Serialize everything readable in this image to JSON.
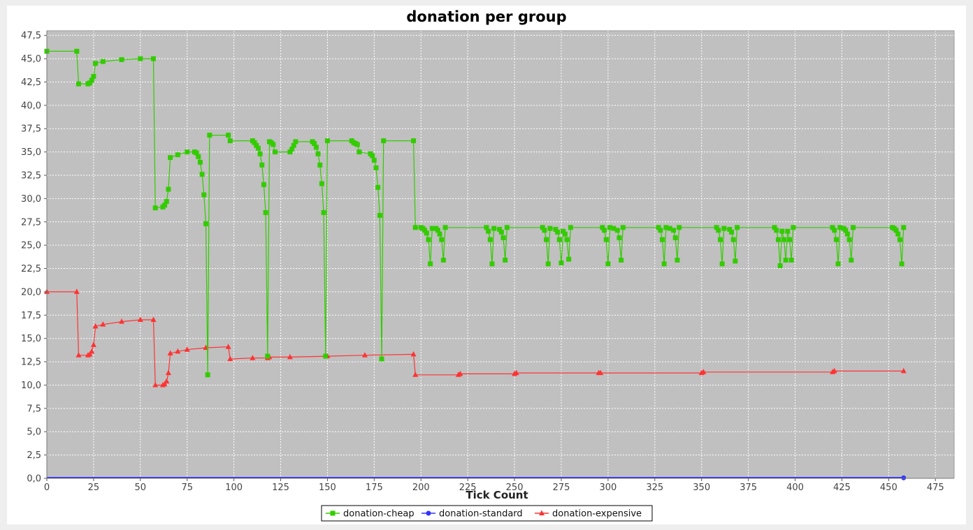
{
  "chart_data": {
    "type": "line",
    "title": "donation per group",
    "xlabel": "Tick Count",
    "ylabel": "",
    "xlim": [
      0,
      485
    ],
    "ylim": [
      0,
      48
    ],
    "xticks": [
      0,
      25,
      50,
      75,
      100,
      125,
      150,
      175,
      200,
      225,
      250,
      275,
      300,
      325,
      350,
      375,
      400,
      425,
      450,
      475
    ],
    "xtick_labels": [
      "0",
      "25",
      "50",
      "75",
      "100",
      "125",
      "150",
      "175",
      "200",
      "225",
      "250",
      "275",
      "300",
      "325",
      "350",
      "375",
      "400",
      "425",
      "450",
      "475"
    ],
    "yticks": [
      0,
      2.5,
      5,
      7.5,
      10,
      12.5,
      15,
      17.5,
      20,
      22.5,
      25,
      27.5,
      30,
      32.5,
      35,
      37.5,
      40,
      42.5,
      45,
      47.5
    ],
    "ytick_labels": [
      "0,0",
      "2,5",
      "5,0",
      "7,5",
      "10,0",
      "12,5",
      "15,0",
      "17,5",
      "20,0",
      "22,5",
      "25,0",
      "27,5",
      "30,0",
      "32,5",
      "35,0",
      "37,5",
      "40,0",
      "42,5",
      "45,0",
      "47,5"
    ],
    "grid": true,
    "legend_position": "bottom",
    "plot_background": "#c0c0c0",
    "series": [
      {
        "name": "donation-cheap",
        "color": "#33cc00",
        "marker": "square",
        "points": [
          [
            0,
            45.8
          ],
          [
            16,
            45.8
          ],
          [
            17,
            42.3
          ],
          [
            22,
            42.3
          ],
          [
            23,
            42.4
          ],
          [
            24,
            42.7
          ],
          [
            25,
            43.1
          ],
          [
            26,
            44.5
          ],
          [
            30,
            44.7
          ],
          [
            40,
            44.9
          ],
          [
            50,
            45.0
          ],
          [
            57,
            45.0
          ],
          [
            58,
            29.0
          ],
          [
            62,
            29.1
          ],
          [
            63,
            29.3
          ],
          [
            64,
            29.7
          ],
          [
            65,
            31.0
          ],
          [
            66,
            34.4
          ],
          [
            70,
            34.7
          ],
          [
            75,
            35.0
          ],
          [
            79,
            35.0
          ],
          [
            80,
            34.9
          ],
          [
            81,
            34.5
          ],
          [
            82,
            33.9
          ],
          [
            83,
            32.6
          ],
          [
            84,
            30.4
          ],
          [
            85,
            27.3
          ],
          [
            86,
            11.1
          ],
          [
            87,
            36.8
          ],
          [
            97,
            36.8
          ],
          [
            98,
            36.2
          ],
          [
            110,
            36.2
          ],
          [
            111,
            36.0
          ],
          [
            112,
            35.7
          ],
          [
            113,
            35.4
          ],
          [
            114,
            34.8
          ],
          [
            115,
            33.6
          ],
          [
            116,
            31.5
          ],
          [
            117,
            28.5
          ],
          [
            118,
            13.1
          ],
          [
            119,
            36.1
          ],
          [
            120,
            36.0
          ],
          [
            121,
            35.8
          ],
          [
            122,
            35.0
          ],
          [
            130,
            35.0
          ],
          [
            131,
            35.3
          ],
          [
            132,
            35.7
          ],
          [
            133,
            36.1
          ],
          [
            142,
            36.1
          ],
          [
            143,
            35.9
          ],
          [
            144,
            35.5
          ],
          [
            145,
            34.8
          ],
          [
            146,
            33.6
          ],
          [
            147,
            31.6
          ],
          [
            148,
            28.5
          ],
          [
            149,
            13.1
          ],
          [
            150,
            36.2
          ],
          [
            163,
            36.2
          ],
          [
            164,
            36.0
          ],
          [
            165,
            35.9
          ],
          [
            166,
            35.8
          ],
          [
            167,
            35.0
          ],
          [
            173,
            34.8
          ],
          [
            174,
            34.6
          ],
          [
            175,
            34.1
          ],
          [
            176,
            33.3
          ],
          [
            177,
            31.2
          ],
          [
            178,
            28.2
          ],
          [
            179,
            12.8
          ],
          [
            180,
            36.2
          ],
          [
            196,
            36.2
          ],
          [
            197,
            26.9
          ],
          [
            200,
            26.9
          ],
          [
            201,
            26.8
          ],
          [
            202,
            26.6
          ],
          [
            203,
            26.3
          ],
          [
            204,
            25.6
          ],
          [
            205,
            23.0
          ],
          [
            206,
            26.8
          ],
          [
            208,
            26.8
          ],
          [
            209,
            26.6
          ],
          [
            210,
            26.2
          ],
          [
            211,
            25.6
          ],
          [
            212,
            23.4
          ],
          [
            213,
            26.9
          ],
          [
            235,
            26.9
          ],
          [
            236,
            26.5
          ],
          [
            237,
            25.6
          ],
          [
            238,
            23.0
          ],
          [
            239,
            26.8
          ],
          [
            242,
            26.7
          ],
          [
            243,
            26.4
          ],
          [
            244,
            25.8
          ],
          [
            245,
            23.4
          ],
          [
            246,
            26.9
          ],
          [
            265,
            26.9
          ],
          [
            266,
            26.6
          ],
          [
            267,
            25.6
          ],
          [
            268,
            23.0
          ],
          [
            269,
            26.8
          ],
          [
            272,
            26.7
          ],
          [
            273,
            26.4
          ],
          [
            274,
            25.6
          ],
          [
            275,
            23.1
          ],
          [
            276,
            26.5
          ],
          [
            277,
            26.2
          ],
          [
            278,
            25.6
          ],
          [
            279,
            23.5
          ],
          [
            280,
            26.9
          ],
          [
            297,
            26.9
          ],
          [
            298,
            26.6
          ],
          [
            299,
            25.6
          ],
          [
            300,
            23.0
          ],
          [
            301,
            26.9
          ],
          [
            303,
            26.8
          ],
          [
            305,
            26.6
          ],
          [
            306,
            25.8
          ],
          [
            307,
            23.4
          ],
          [
            308,
            26.9
          ],
          [
            327,
            26.9
          ],
          [
            328,
            26.6
          ],
          [
            329,
            25.6
          ],
          [
            330,
            23.0
          ],
          [
            331,
            26.9
          ],
          [
            333,
            26.8
          ],
          [
            335,
            26.6
          ],
          [
            336,
            25.8
          ],
          [
            337,
            23.4
          ],
          [
            338,
            26.9
          ],
          [
            358,
            26.9
          ],
          [
            359,
            26.6
          ],
          [
            360,
            25.6
          ],
          [
            361,
            23.0
          ],
          [
            362,
            26.8
          ],
          [
            365,
            26.7
          ],
          [
            366,
            26.4
          ],
          [
            367,
            25.6
          ],
          [
            368,
            23.3
          ],
          [
            369,
            26.9
          ],
          [
            389,
            26.9
          ],
          [
            390,
            26.6
          ],
          [
            391,
            25.6
          ],
          [
            392,
            22.8
          ],
          [
            393,
            26.5
          ],
          [
            394,
            25.6
          ],
          [
            395,
            23.4
          ],
          [
            396,
            26.5
          ],
          [
            397,
            25.6
          ],
          [
            398,
            23.4
          ],
          [
            399,
            26.9
          ],
          [
            420,
            26.9
          ],
          [
            421,
            26.6
          ],
          [
            422,
            25.6
          ],
          [
            423,
            23.0
          ],
          [
            424,
            26.9
          ],
          [
            426,
            26.8
          ],
          [
            427,
            26.6
          ],
          [
            428,
            26.2
          ],
          [
            429,
            25.6
          ],
          [
            430,
            23.4
          ],
          [
            431,
            26.9
          ],
          [
            452,
            26.9
          ],
          [
            453,
            26.8
          ],
          [
            454,
            26.6
          ],
          [
            455,
            26.2
          ],
          [
            456,
            25.6
          ],
          [
            457,
            23.0
          ],
          [
            458,
            26.9
          ]
        ]
      },
      {
        "name": "donation-standard",
        "color": "#3333ff",
        "marker": "circle",
        "points": [
          [
            0,
            0.05
          ],
          [
            458,
            0.05
          ]
        ]
      },
      {
        "name": "donation-expensive",
        "color": "#ff3333",
        "marker": "triangle",
        "points": [
          [
            0,
            20.0
          ],
          [
            16,
            20.0
          ],
          [
            17,
            13.2
          ],
          [
            22,
            13.2
          ],
          [
            23,
            13.3
          ],
          [
            24,
            13.6
          ],
          [
            25,
            14.3
          ],
          [
            26,
            16.3
          ],
          [
            30,
            16.5
          ],
          [
            40,
            16.8
          ],
          [
            50,
            17.0
          ],
          [
            57,
            17.0
          ],
          [
            58,
            10.0
          ],
          [
            62,
            10.0
          ],
          [
            63,
            10.1
          ],
          [
            64,
            10.4
          ],
          [
            65,
            11.3
          ],
          [
            66,
            13.4
          ],
          [
            70,
            13.6
          ],
          [
            75,
            13.8
          ],
          [
            85,
            14.0
          ],
          [
            97,
            14.1
          ],
          [
            98,
            12.8
          ],
          [
            110,
            12.9
          ],
          [
            118,
            12.9
          ],
          [
            119,
            13.0
          ],
          [
            130,
            13.0
          ],
          [
            150,
            13.1
          ],
          [
            170,
            13.2
          ],
          [
            196,
            13.3
          ],
          [
            197,
            11.1
          ],
          [
            220,
            11.1
          ],
          [
            221,
            11.2
          ],
          [
            250,
            11.2
          ],
          [
            251,
            11.3
          ],
          [
            295,
            11.3
          ],
          [
            296,
            11.3
          ],
          [
            350,
            11.3
          ],
          [
            351,
            11.4
          ],
          [
            420,
            11.4
          ],
          [
            421,
            11.5
          ],
          [
            458,
            11.5
          ]
        ]
      }
    ]
  }
}
